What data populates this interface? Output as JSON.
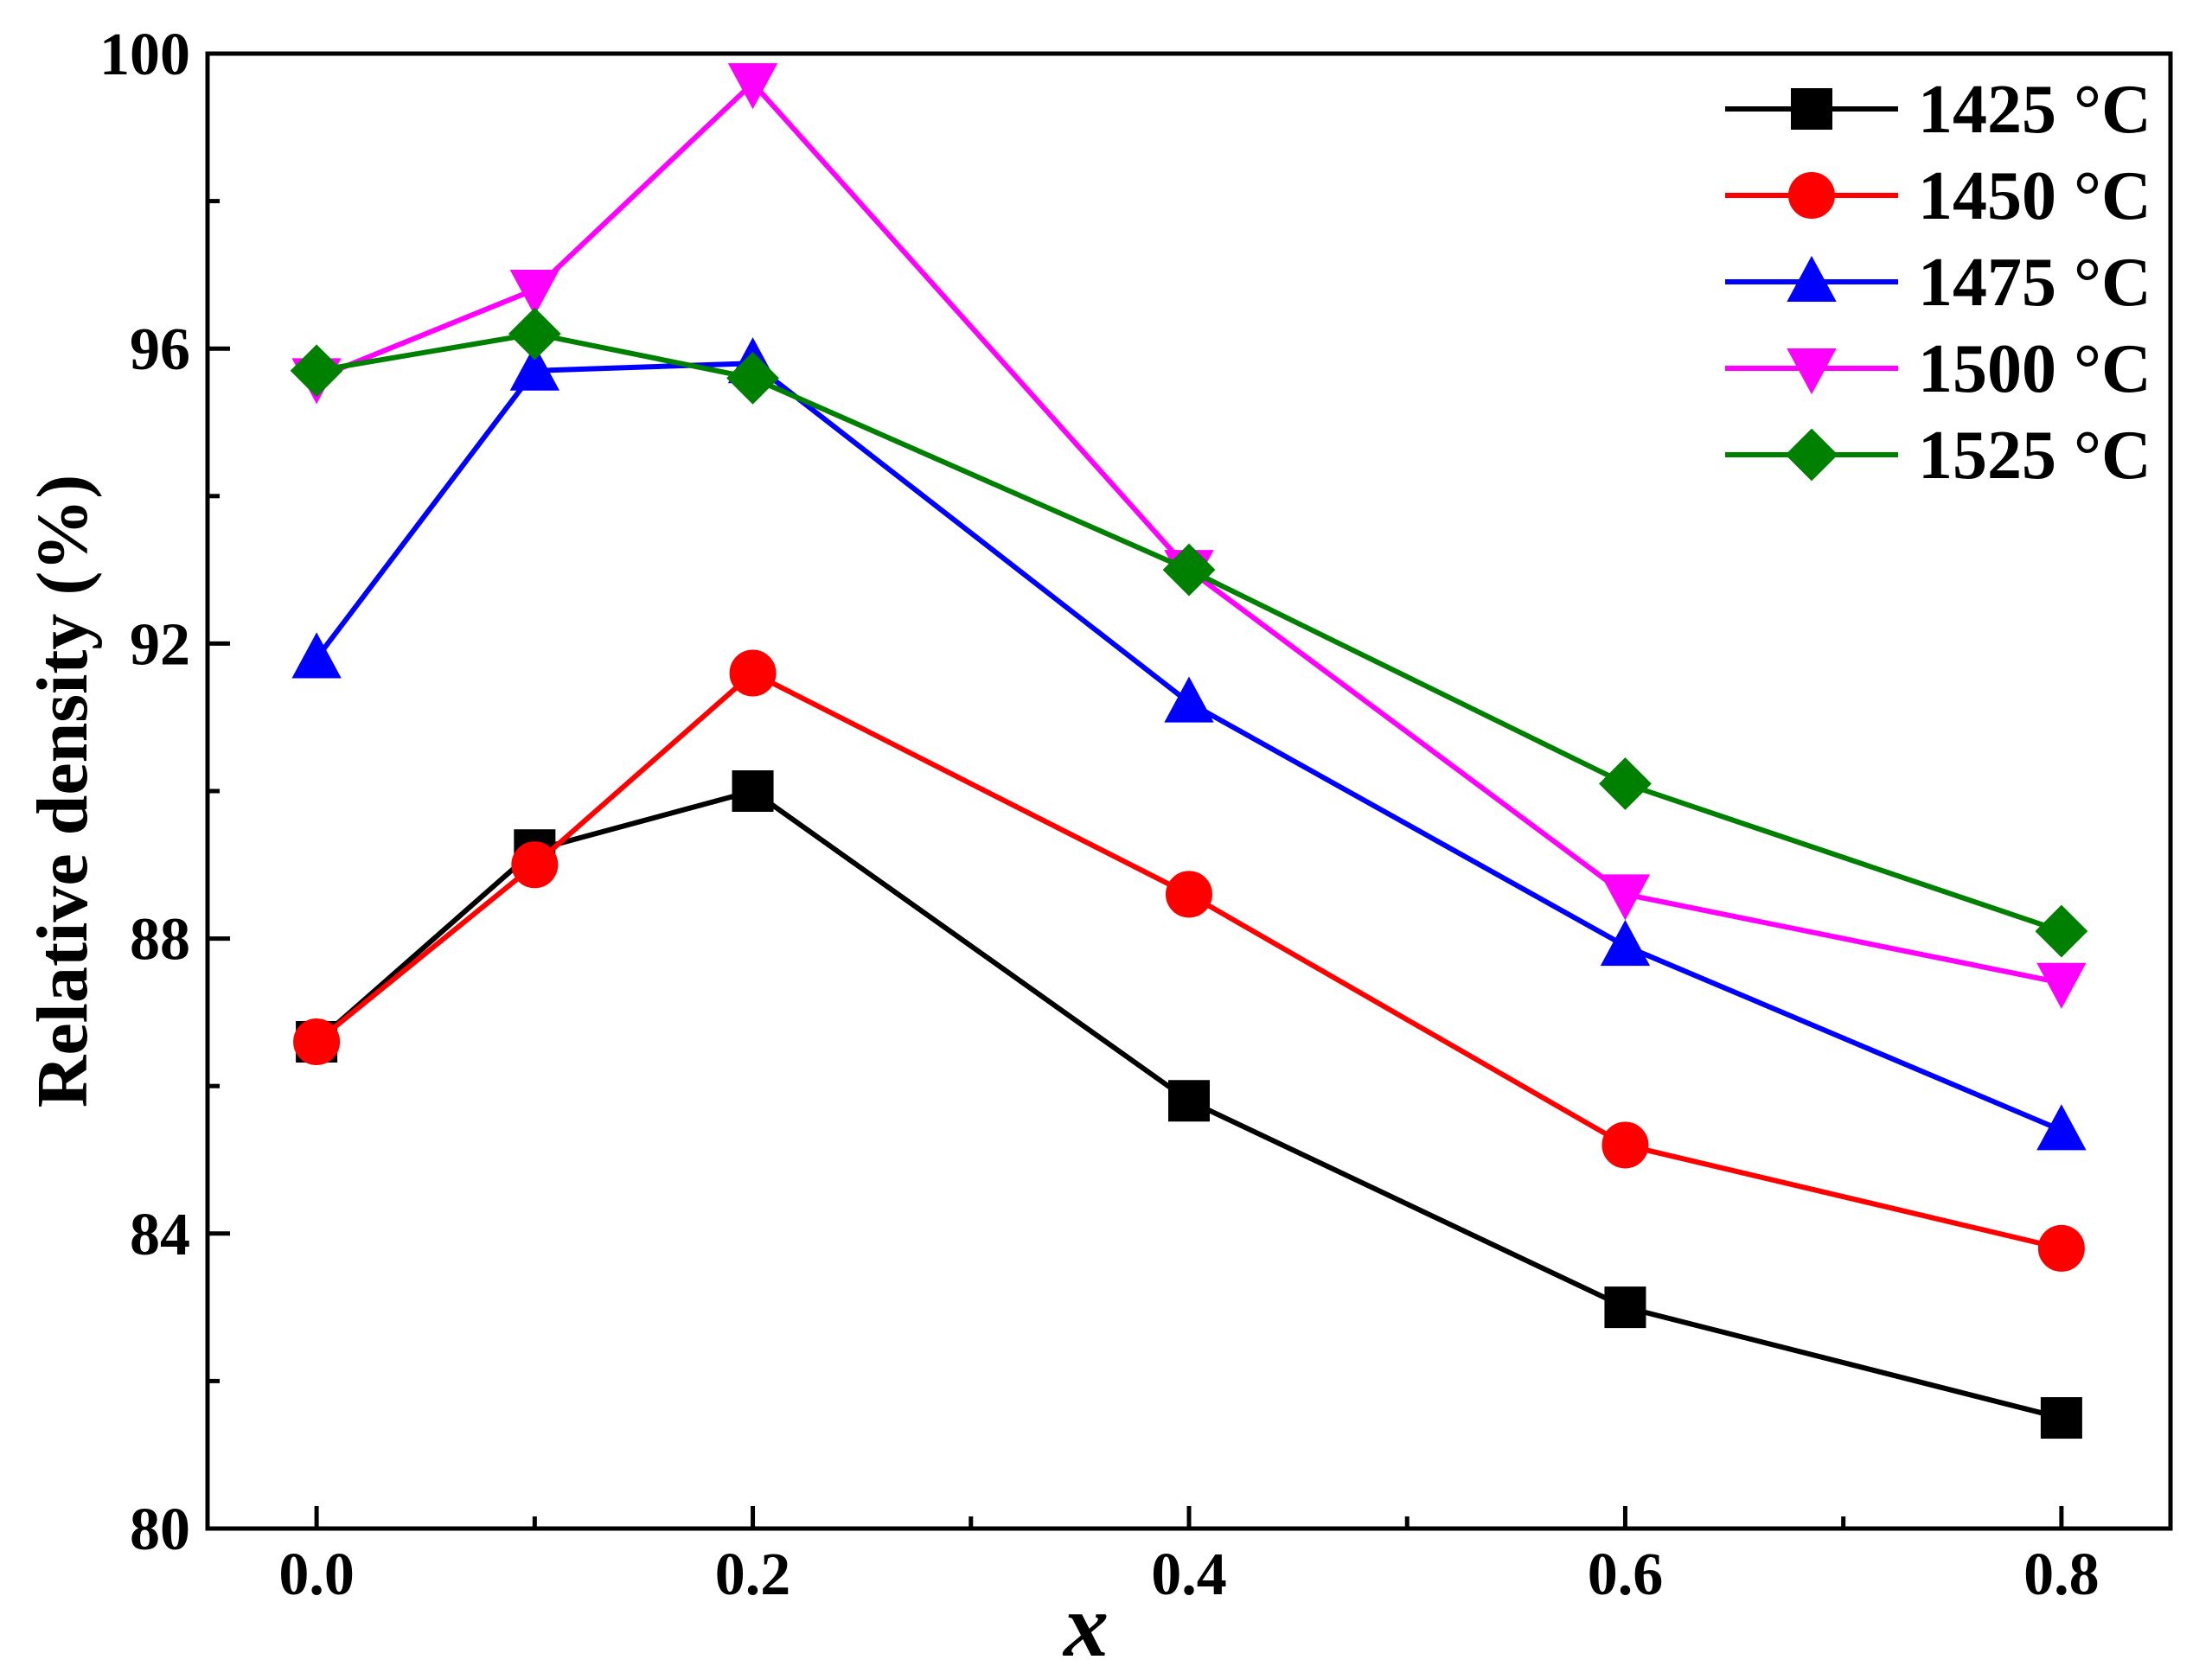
{
  "chart_data": {
    "type": "line",
    "title": "",
    "xlabel": "x",
    "ylabel": "Relative density (%)",
    "xlim": [
      -0.05,
      0.85
    ],
    "ylim": [
      80,
      100
    ],
    "xticks": [
      0.0,
      0.2,
      0.4,
      0.6,
      0.8
    ],
    "xtick_labels": [
      "0.0",
      "0.2",
      "0.4",
      "0.6",
      "0.8"
    ],
    "yticks": [
      80,
      84,
      88,
      92,
      96,
      100
    ],
    "ytick_labels": [
      "80",
      "84",
      "88",
      "92",
      "96",
      "100"
    ],
    "grid": false,
    "legend_position": "top-right",
    "x": [
      0.0,
      0.1,
      0.2,
      0.4,
      0.6,
      0.8
    ],
    "series": [
      {
        "name": "1425 °C",
        "color": "#000000",
        "marker": "square",
        "values": [
          86.6,
          89.2,
          90.0,
          85.8,
          83.0,
          81.5
        ]
      },
      {
        "name": "1450 °C",
        "color": "#ff0000",
        "marker": "circle",
        "values": [
          86.6,
          89.0,
          91.6,
          88.6,
          85.2,
          83.8
        ]
      },
      {
        "name": "1475 °C",
        "color": "#0000ff",
        "marker": "triangle-up",
        "values": [
          91.8,
          95.7,
          95.8,
          91.2,
          87.9,
          85.4
        ]
      },
      {
        "name": "1500 °C",
        "color": "#ff00ff",
        "marker": "triangle-down",
        "values": [
          95.6,
          96.8,
          99.6,
          93.0,
          88.6,
          87.4
        ]
      },
      {
        "name": "1525 °C",
        "color": "#008000",
        "marker": "diamond",
        "values": [
          95.7,
          96.2,
          95.6,
          93.0,
          90.1,
          88.1
        ]
      }
    ]
  }
}
